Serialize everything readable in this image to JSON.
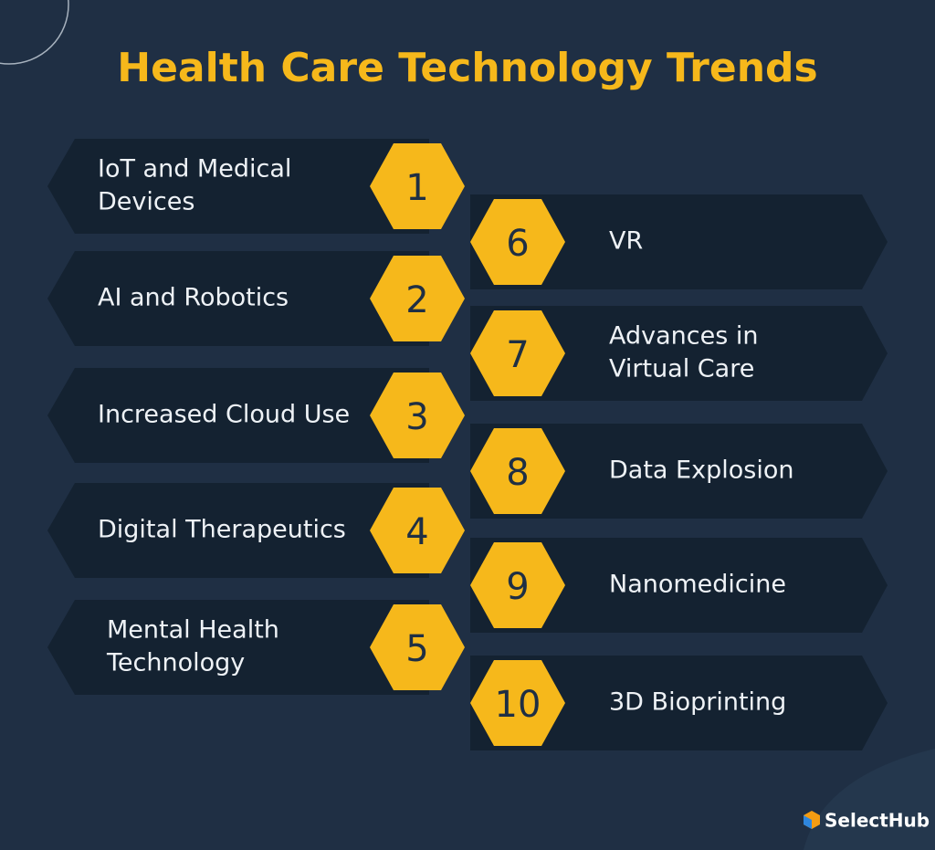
{
  "title": "Health Care Technology Trends",
  "items": [
    {
      "number": "1",
      "lines": [
        "IoT and Medical",
        "Devices"
      ]
    },
    {
      "number": "2",
      "lines": [
        "AI and Robotics"
      ]
    },
    {
      "number": "3",
      "lines": [
        "Increased Cloud Use"
      ]
    },
    {
      "number": "4",
      "lines": [
        "Digital Therapeutics"
      ]
    },
    {
      "number": "5",
      "lines": [
        "Mental Health",
        "Technology"
      ]
    },
    {
      "number": "6",
      "lines": [
        "VR"
      ]
    },
    {
      "number": "7",
      "lines": [
        "Advances in",
        "Virtual Care"
      ]
    },
    {
      "number": "8",
      "lines": [
        "Data Explosion"
      ]
    },
    {
      "number": "9",
      "lines": [
        "Nanomedicine"
      ]
    },
    {
      "number": "10",
      "lines": [
        "3D Bioprinting"
      ]
    }
  ],
  "logo": "SelectHub"
}
